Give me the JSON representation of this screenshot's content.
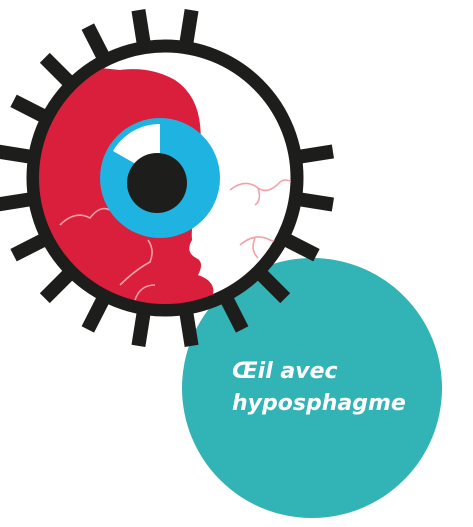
{
  "label": {
    "lines": [
      "Œil avec",
      "hyposphagme"
    ]
  }
}
